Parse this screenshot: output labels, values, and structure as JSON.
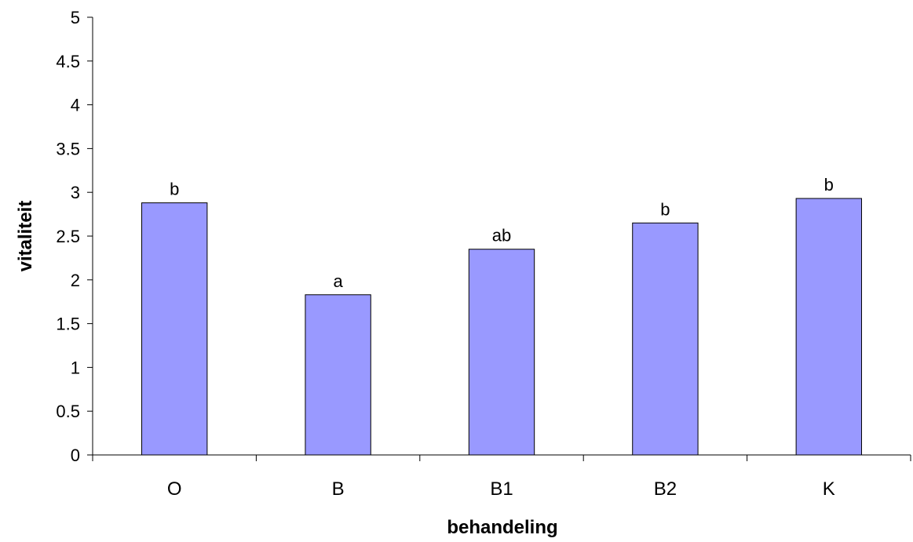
{
  "chart_data": {
    "type": "bar",
    "title": "",
    "xlabel": "behandeling",
    "ylabel": "vitaliteit",
    "categories": [
      "O",
      "B",
      "B1",
      "B2",
      "K"
    ],
    "values": [
      2.88,
      1.83,
      2.35,
      2.65,
      2.93
    ],
    "data_labels": [
      "b",
      "a",
      "ab",
      "b",
      "b"
    ],
    "ylim": [
      0,
      5
    ],
    "yticks": [
      "0",
      "0.5",
      "1",
      "1.5",
      "2",
      "2.5",
      "3",
      "3.5",
      "4",
      "4.5",
      "5"
    ],
    "grid": false,
    "legend": "none",
    "colors": {
      "bar_fill": "#9999ff",
      "bar_stroke": "#000000",
      "axis": "#000000"
    }
  }
}
